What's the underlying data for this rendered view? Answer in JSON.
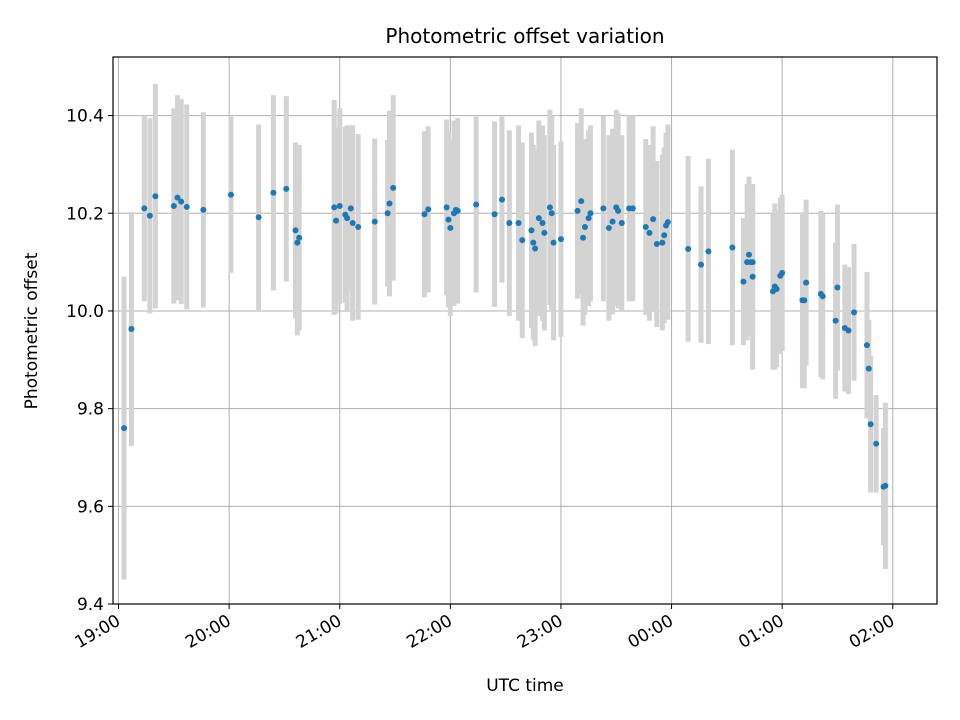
{
  "chart_data": {
    "type": "scatter",
    "title": "Photometric offset variation",
    "xlabel": "UTC time",
    "ylabel": "Photometric offset",
    "x_range": [
      "18:57",
      "02:24"
    ],
    "ylim": [
      9.4,
      10.52
    ],
    "x_ticks": [
      "19:00",
      "20:00",
      "21:00",
      "22:00",
      "23:00",
      "00:00",
      "01:00",
      "02:00"
    ],
    "y_ticks": [
      "9.4",
      "9.6",
      "9.8",
      "10.0",
      "10.2",
      "10.4"
    ],
    "grid": true,
    "marker_color": "#1f77b4",
    "errorbar_color": "#d3d3d3",
    "series": [
      {
        "points": [
          [
            "19:03",
            9.76,
            0.31
          ],
          [
            "19:07",
            9.963,
            0.24
          ],
          [
            "19:14",
            10.21,
            0.19
          ],
          [
            "19:17",
            10.195,
            0.2
          ],
          [
            "19:20",
            10.235,
            0.23
          ],
          [
            "19:30",
            10.215,
            0.2
          ],
          [
            "19:32",
            10.232,
            0.21
          ],
          [
            "19:34",
            10.224,
            0.21
          ],
          [
            "19:37",
            10.213,
            0.21
          ],
          [
            "19:46",
            10.207,
            0.2
          ],
          [
            "20:01",
            10.238,
            0.16
          ],
          [
            "20:16",
            10.192,
            0.19
          ],
          [
            "20:24",
            10.242,
            0.2
          ],
          [
            "20:31",
            10.25,
            0.19
          ],
          [
            "20:36",
            10.165,
            0.18
          ],
          [
            "20:37",
            10.14,
            0.19
          ],
          [
            "20:38",
            10.15,
            0.19
          ],
          [
            "20:57",
            10.212,
            0.22
          ],
          [
            "20:58",
            10.185,
            0.19
          ],
          [
            "21:00",
            10.215,
            0.2
          ],
          [
            "21:03",
            10.197,
            0.18
          ],
          [
            "21:04",
            10.19,
            0.19
          ],
          [
            "21:06",
            10.21,
            0.17
          ],
          [
            "21:07",
            10.18,
            0.2
          ],
          [
            "21:10",
            10.172,
            0.19
          ],
          [
            "21:19",
            10.183,
            0.17
          ],
          [
            "21:26",
            10.2,
            0.15
          ],
          [
            "21:27",
            10.22,
            0.19
          ],
          [
            "21:29",
            10.252,
            0.19
          ],
          [
            "21:46",
            10.198,
            0.17
          ],
          [
            "21:48",
            10.208,
            0.17
          ],
          [
            "21:58",
            10.212,
            0.18
          ],
          [
            "21:59",
            10.187,
            0.18
          ],
          [
            "22:00",
            10.17,
            0.18
          ],
          [
            "22:02",
            10.2,
            0.19
          ],
          [
            "22:03",
            10.207,
            0.18
          ],
          [
            "22:04",
            10.205,
            0.19
          ],
          [
            "22:14",
            10.218,
            0.18
          ],
          [
            "22:24",
            10.198,
            0.19
          ],
          [
            "22:28",
            10.228,
            0.17
          ],
          [
            "22:32",
            10.18,
            0.19
          ],
          [
            "22:37",
            10.18,
            0.2
          ],
          [
            "22:39",
            10.145,
            0.2
          ],
          [
            "22:44",
            10.165,
            0.2
          ],
          [
            "22:45",
            10.14,
            0.2
          ],
          [
            "22:46",
            10.128,
            0.2
          ],
          [
            "22:48",
            10.19,
            0.2
          ],
          [
            "22:50",
            10.18,
            0.2
          ],
          [
            "22:51",
            10.16,
            0.2
          ],
          [
            "22:54",
            10.212,
            0.2
          ],
          [
            "22:55",
            10.2,
            0.2
          ],
          [
            "22:56",
            10.14,
            0.2
          ],
          [
            "23:00",
            10.147,
            0.2
          ],
          [
            "23:09",
            10.205,
            0.18
          ],
          [
            "23:11",
            10.225,
            0.19
          ],
          [
            "23:12",
            10.15,
            0.18
          ],
          [
            "23:13",
            10.172,
            0.18
          ],
          [
            "23:15",
            10.19,
            0.18
          ],
          [
            "23:16",
            10.2,
            0.18
          ],
          [
            "23:23",
            10.21,
            0.19
          ],
          [
            "23:26",
            10.17,
            0.19
          ],
          [
            "23:28",
            10.183,
            0.19
          ],
          [
            "23:30",
            10.212,
            0.2
          ],
          [
            "23:31",
            10.205,
            0.2
          ],
          [
            "23:33",
            10.18,
            0.18
          ],
          [
            "23:37",
            10.21,
            0.19
          ],
          [
            "23:39",
            10.21,
            0.19
          ],
          [
            "23:46",
            10.172,
            0.18
          ],
          [
            "23:48",
            10.16,
            0.18
          ],
          [
            "23:50",
            10.188,
            0.19
          ],
          [
            "23:52",
            10.137,
            0.17
          ],
          [
            "23:55",
            10.14,
            0.18
          ],
          [
            "23:56",
            10.155,
            0.18
          ],
          [
            "23:57",
            10.175,
            0.19
          ],
          [
            "23:58",
            10.182,
            0.2
          ],
          [
            "00:09",
            10.127,
            0.19
          ],
          [
            "00:16",
            10.095,
            0.16
          ],
          [
            "00:20",
            10.122,
            0.19
          ],
          [
            "00:33",
            10.13,
            0.2
          ],
          [
            "00:39",
            10.06,
            0.13
          ],
          [
            "00:41",
            10.1,
            0.16
          ],
          [
            "00:42",
            10.115,
            0.16
          ],
          [
            "00:43",
            10.1,
            0.15
          ],
          [
            "00:44",
            10.07,
            0.19
          ],
          [
            "00:44",
            10.1,
            0.15
          ],
          [
            "00:55",
            10.04,
            0.16
          ],
          [
            "00:56",
            10.05,
            0.17
          ],
          [
            "00:57",
            10.045,
            0.16
          ],
          [
            "00:59",
            10.072,
            0.16
          ],
          [
            "01:00",
            10.078,
            0.16
          ],
          [
            "01:11",
            10.022,
            0.18
          ],
          [
            "01:12",
            10.022,
            0.18
          ],
          [
            "01:13",
            10.058,
            0.17
          ],
          [
            "01:21",
            10.035,
            0.17
          ],
          [
            "01:22",
            10.03,
            0.17
          ],
          [
            "01:29",
            9.98,
            0.16
          ],
          [
            "01:30",
            10.048,
            0.17
          ],
          [
            "01:34",
            9.965,
            0.13
          ],
          [
            "01:36",
            9.96,
            0.13
          ],
          [
            "01:39",
            9.997,
            0.14
          ],
          [
            "01:46",
            9.93,
            0.15
          ],
          [
            "01:47",
            9.882,
            0.1
          ],
          [
            "01:48",
            9.768,
            0.14
          ],
          [
            "01:51",
            9.728,
            0.1
          ],
          [
            "01:55",
            9.64,
            0.12
          ],
          [
            "01:56",
            9.642,
            0.17
          ]
        ]
      }
    ]
  }
}
